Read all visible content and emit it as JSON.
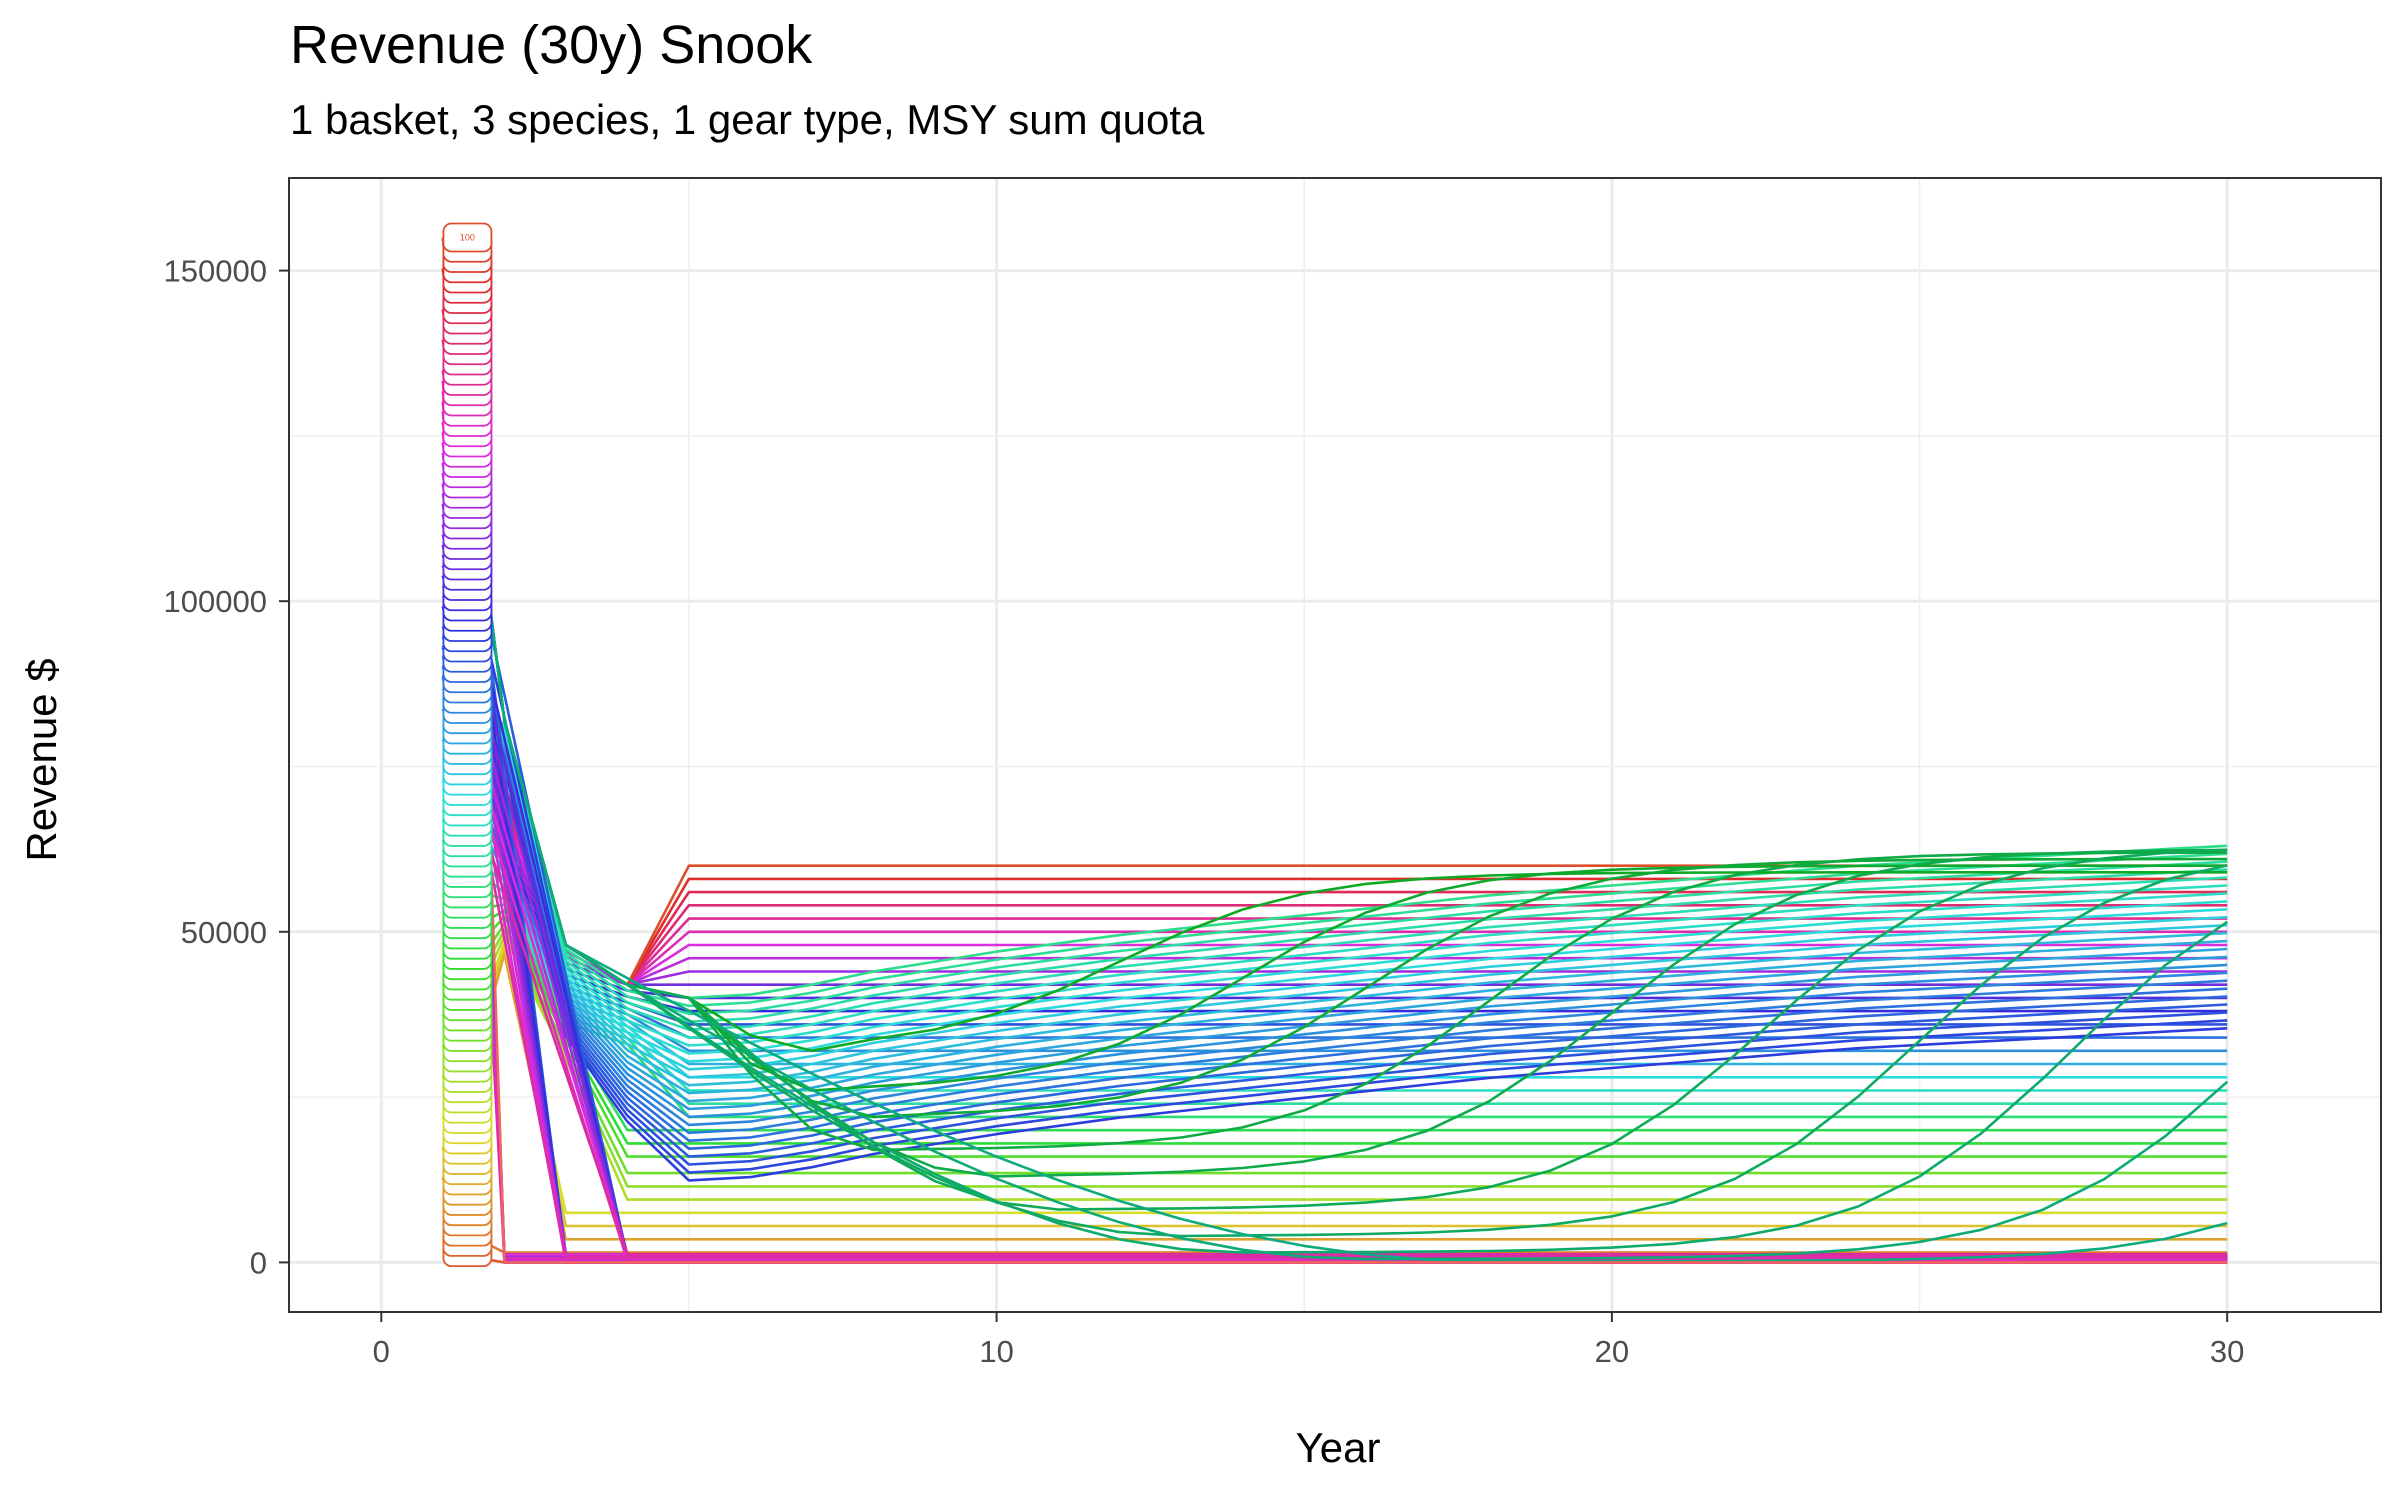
{
  "chart_data": {
    "type": "line",
    "title": "Revenue (30y) Snook",
    "subtitle": "1 basket, 3 species, 1 gear type, MSY sum quota",
    "xlabel": "Year",
    "ylabel": "Revenue $",
    "xlim": [
      -1.5,
      32.5
    ],
    "ylim": [
      -7500,
      164000
    ],
    "x_ticks": [
      0,
      10,
      20,
      30
    ],
    "x_tick_labels": [
      "0",
      "10",
      "20",
      "30"
    ],
    "y_ticks": [
      0,
      50000,
      100000,
      150000
    ],
    "y_tick_labels": [
      "0",
      "50000",
      "100000",
      "150000"
    ],
    "grid": true,
    "legend": "none",
    "series_count": 100,
    "start_label_text": "100",
    "x_years": [
      1,
      2,
      3,
      4,
      5,
      6,
      7,
      8,
      9,
      10,
      11,
      12,
      13,
      14,
      15,
      16,
      17,
      18,
      19,
      20,
      21,
      22,
      23,
      24,
      25,
      26,
      27,
      28,
      29,
      30
    ],
    "envelope": {
      "x": [
        1,
        2,
        3,
        4,
        5,
        6,
        7,
        8,
        9,
        10,
        12,
        14,
        16,
        18,
        20,
        22,
        24,
        26,
        28,
        30
      ],
      "y": [
        155000,
        82000,
        48000,
        42000,
        40000,
        40500,
        42000,
        44000,
        45500,
        47000,
        49500,
        51500,
        53500,
        55500,
        57000,
        58500,
        60000,
        61000,
        62000,
        63000
      ]
    },
    "flat_levels": [
      0,
      1500,
      3500,
      5500,
      7500,
      9500,
      11500,
      13500,
      16000,
      18000,
      20000,
      22000,
      24000,
      26000,
      28000,
      30000,
      32000,
      34000,
      36000,
      38000,
      40000,
      42000,
      44000,
      46000,
      48000,
      50000,
      52000,
      54000,
      56000,
      58000,
      60000
    ],
    "recovery_curves": [
      {
        "collapse_year": 5,
        "floor": 32000,
        "floor_year": 7,
        "rise_mid": 12,
        "rise_width": 3,
        "final": 59000
      },
      {
        "collapse_year": 5,
        "floor": 26000,
        "floor_year": 7,
        "rise_mid": 14,
        "rise_width": 3,
        "final": 60000
      },
      {
        "collapse_year": 5,
        "floor": 22000,
        "floor_year": 8,
        "rise_mid": 16,
        "rise_width": 3.2,
        "final": 61000
      },
      {
        "collapse_year": 5,
        "floor": 17000,
        "floor_year": 8,
        "rise_mid": 18,
        "rise_width": 3.2,
        "final": 62000
      },
      {
        "collapse_year": 5,
        "floor": 13000,
        "floor_year": 10,
        "rise_mid": 20,
        "rise_width": 3.3,
        "final": 62500
      },
      {
        "collapse_year": 5,
        "floor": 8000,
        "floor_year": 11,
        "rise_mid": 22.5,
        "rise_width": 3.3,
        "final": 63000
      },
      {
        "collapse_year": 4,
        "floor": 4000,
        "floor_year": 13,
        "rise_mid": 25,
        "rise_width": 3.4,
        "final": 63000
      },
      {
        "collapse_year": 4,
        "floor": 1500,
        "floor_year": 14,
        "rise_mid": 27.5,
        "rise_width": 3.4,
        "final": 63000
      },
      {
        "collapse_year": 4,
        "floor": 500,
        "floor_year": 16,
        "rise_mid": 30.5,
        "rise_width": 3.5,
        "final": 63000
      },
      {
        "collapse_year": 3,
        "floor": 150,
        "floor_year": 18,
        "rise_mid": 34,
        "rise_width": 3.5,
        "final": 63000
      }
    ]
  }
}
